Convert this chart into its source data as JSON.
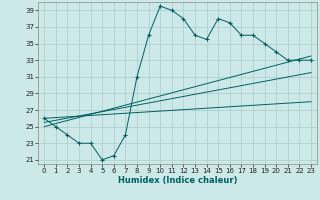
{
  "xlabel": "Humidex (Indice chaleur)",
  "bg_color": "#cce8e8",
  "grid_color": "#aacccc",
  "line_color": "#006060",
  "xlim": [
    -0.5,
    23.5
  ],
  "ylim": [
    20.5,
    40.0
  ],
  "yticks": [
    21,
    23,
    25,
    27,
    29,
    31,
    33,
    35,
    37,
    39
  ],
  "xticks": [
    0,
    1,
    2,
    3,
    4,
    5,
    6,
    7,
    8,
    9,
    10,
    11,
    12,
    13,
    14,
    15,
    16,
    17,
    18,
    19,
    20,
    21,
    22,
    23
  ],
  "series1_x": [
    0,
    1,
    2,
    3,
    4,
    5,
    6,
    7,
    8,
    9,
    10,
    11,
    12,
    13,
    14,
    15,
    16,
    17,
    18,
    19,
    20,
    21,
    22,
    23
  ],
  "series1_y": [
    26,
    25,
    24,
    23,
    23,
    21,
    21.5,
    24,
    31,
    36,
    39.5,
    39,
    38,
    36,
    35.5,
    38,
    37.5,
    36,
    36,
    35,
    34,
    33,
    33,
    33
  ],
  "trend1_x": [
    0,
    23
  ],
  "trend1_y": [
    26.0,
    28.0
  ],
  "trend2_x": [
    0,
    23
  ],
  "trend2_y": [
    25.5,
    31.5
  ],
  "trend3_x": [
    0,
    23
  ],
  "trend3_y": [
    25.0,
    33.5
  ],
  "tick_fontsize": 5.0,
  "xlabel_fontsize": 6.0
}
